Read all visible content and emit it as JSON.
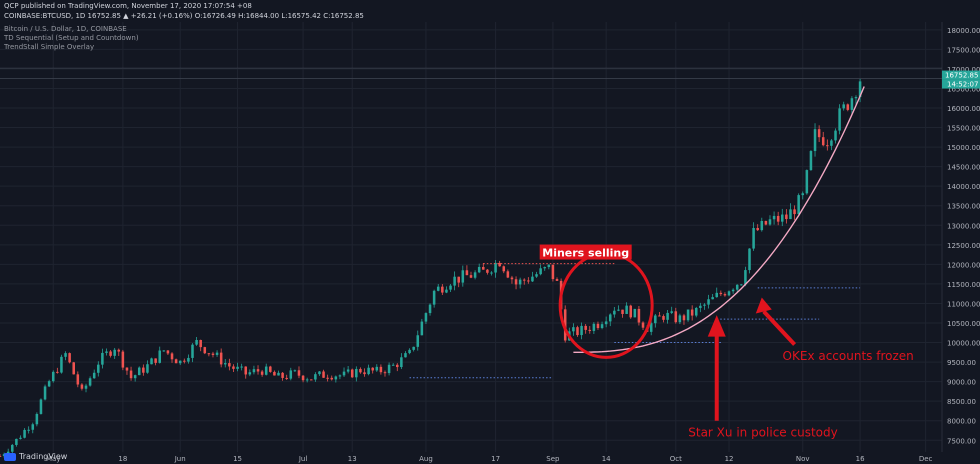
{
  "header": {
    "published": "QCP published on TradingView.com, November 17, 2020 17:07:54 +08",
    "symbol_line": "COINBASE:BTCUSD, 1D  16752.85 ▲ +26.21 (+0.16%) O:16726.49 H:16844.00 L:16575.42 C:16752.85",
    "indicators": [
      "Bitcoin / U.S. Dollar, 1D, COINBASE",
      "TD Sequential (Setup and Countdown)",
      "TrendStall Simple Overlay"
    ]
  },
  "footer": {
    "brand": "TradingView"
  },
  "colors": {
    "background": "#131722",
    "up": "#26a69a",
    "down": "#ef5350",
    "annotation": "#e0141e",
    "curve": "#f4a9c4",
    "grid": "#1f2430"
  },
  "chart_data": {
    "type": "candlestick",
    "currency": "USD",
    "price_label": "16752.85",
    "countdown_label": "14:52:07",
    "ylim": [
      7200,
      18200
    ],
    "y_ticks": [
      7500,
      8000,
      8500,
      9000,
      9500,
      10000,
      10500,
      11000,
      11500,
      12000,
      12500,
      13000,
      13500,
      14000,
      14500,
      15000,
      15500,
      16000,
      16500,
      17000,
      17500,
      18000
    ],
    "y_tick_labels": [
      "7500.00",
      "8000.00",
      "8500.00",
      "9000.00",
      "9500.00",
      "10000.00",
      "10500.00",
      "11000.00",
      "11500.00",
      "12000.00",
      "12500.00",
      "13000.00",
      "13500.00",
      "14000.00",
      "14500.00",
      "15000.00",
      "15500.00",
      "16000.00",
      "16500.00",
      "17000.00",
      "17500.00",
      "18000.00"
    ],
    "x_ticks": [
      "May",
      "18",
      "Jun",
      "15",
      "Jul",
      "13",
      "Aug",
      "17",
      "Sep",
      "14",
      "Oct",
      "12",
      "Nov",
      "16",
      "Dec"
    ],
    "x_tick_days": [
      13,
      30,
      44,
      58,
      74,
      86,
      104,
      121,
      135,
      148,
      165,
      178,
      196,
      210,
      226
    ],
    "close_path": [
      {
        "day": 0,
        "price": 7100
      },
      {
        "day": 4,
        "price": 7500
      },
      {
        "day": 8,
        "price": 8000
      },
      {
        "day": 12,
        "price": 9000
      },
      {
        "day": 16,
        "price": 9700
      },
      {
        "day": 20,
        "price": 8700
      },
      {
        "day": 24,
        "price": 9500
      },
      {
        "day": 28,
        "price": 9900
      },
      {
        "day": 32,
        "price": 9100
      },
      {
        "day": 36,
        "price": 9400
      },
      {
        "day": 40,
        "price": 9800
      },
      {
        "day": 44,
        "price": 9500
      },
      {
        "day": 48,
        "price": 10000
      },
      {
        "day": 52,
        "price": 9700
      },
      {
        "day": 56,
        "price": 9400
      },
      {
        "day": 60,
        "price": 9200
      },
      {
        "day": 64,
        "price": 9300
      },
      {
        "day": 68,
        "price": 9100
      },
      {
        "day": 72,
        "price": 9200
      },
      {
        "day": 76,
        "price": 9100
      },
      {
        "day": 80,
        "price": 9200
      },
      {
        "day": 84,
        "price": 9150
      },
      {
        "day": 88,
        "price": 9300
      },
      {
        "day": 92,
        "price": 9250
      },
      {
        "day": 96,
        "price": 9400
      },
      {
        "day": 100,
        "price": 9700
      },
      {
        "day": 103,
        "price": 10500
      },
      {
        "day": 106,
        "price": 11300
      },
      {
        "day": 110,
        "price": 11600
      },
      {
        "day": 114,
        "price": 11700
      },
      {
        "day": 118,
        "price": 11800
      },
      {
        "day": 122,
        "price": 12100
      },
      {
        "day": 126,
        "price": 11500
      },
      {
        "day": 130,
        "price": 11700
      },
      {
        "day": 134,
        "price": 11900
      },
      {
        "day": 136,
        "price": 11500
      },
      {
        "day": 138,
        "price": 10200
      },
      {
        "day": 142,
        "price": 10300
      },
      {
        "day": 146,
        "price": 10500
      },
      {
        "day": 150,
        "price": 10900
      },
      {
        "day": 154,
        "price": 10800
      },
      {
        "day": 158,
        "price": 10400
      },
      {
        "day": 162,
        "price": 10700
      },
      {
        "day": 166,
        "price": 10600
      },
      {
        "day": 170,
        "price": 10800
      },
      {
        "day": 174,
        "price": 11100
      },
      {
        "day": 178,
        "price": 11400
      },
      {
        "day": 181,
        "price": 11600
      },
      {
        "day": 184,
        "price": 12800
      },
      {
        "day": 188,
        "price": 13100
      },
      {
        "day": 192,
        "price": 13200
      },
      {
        "day": 196,
        "price": 13700
      },
      {
        "day": 199,
        "price": 15300
      },
      {
        "day": 202,
        "price": 15200
      },
      {
        "day": 205,
        "price": 15800
      },
      {
        "day": 208,
        "price": 16300
      },
      {
        "day": 210,
        "price": 16752.85
      }
    ],
    "annotations": [
      {
        "label": "Miners selling",
        "day": 143,
        "price": 12200
      },
      {
        "label": "Star Xu in police custody",
        "day": 170,
        "price": 7600
      },
      {
        "label": "OKEx accounts frozen",
        "day": 194,
        "price": 9550
      }
    ]
  }
}
